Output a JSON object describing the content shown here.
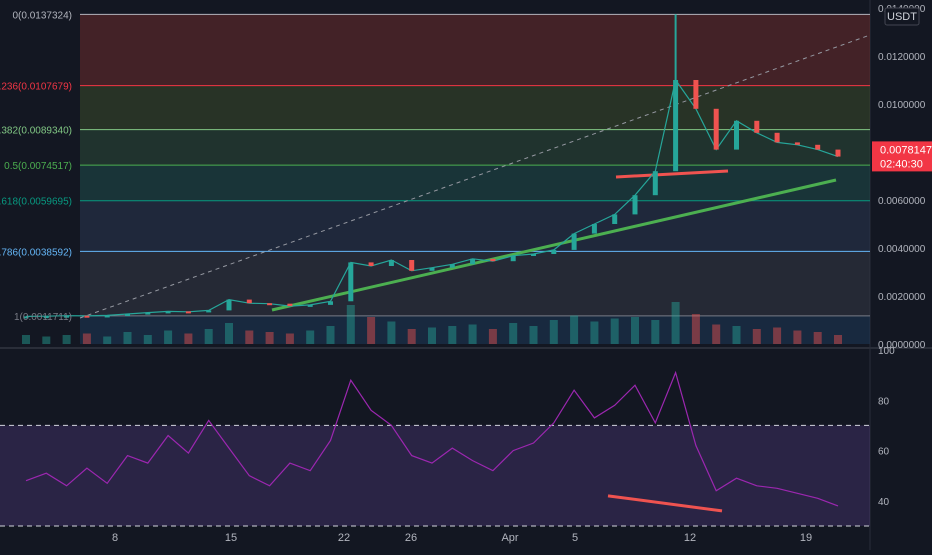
{
  "currency": "USDT",
  "price_axis": {
    "ticks": [
      "0.0140000",
      "0.0120000",
      "0.0100000",
      "0.0080000",
      "0.0060000",
      "0.0040000",
      "0.0020000",
      "0.0000000"
    ],
    "tick_values": [
      0.014,
      0.012,
      0.01,
      0.008,
      0.006,
      0.004,
      0.002,
      0.0
    ]
  },
  "price_tag": {
    "value": "0.0078147",
    "countdown": "02:40:30",
    "color": "#f23645"
  },
  "rsi_axis": {
    "ticks": [
      "100",
      "80",
      "60",
      "40"
    ],
    "tick_values": [
      100,
      80,
      60,
      40
    ]
  },
  "x_axis": {
    "labels": [
      "8",
      "15",
      "22",
      "26",
      "Apr",
      "5",
      "12",
      "19"
    ]
  },
  "fib_levels": [
    {
      "label": "0(0.0137324)",
      "value": 0.0137324,
      "color": "#b2b5be"
    },
    {
      "label": "0.236(0.0107679)",
      "value": 0.0107679,
      "color": "#f23645"
    },
    {
      "label": "0.382(0.0089340)",
      "value": 0.008934,
      "color": "#81c784"
    },
    {
      "label": "0.5(0.0074517)",
      "value": 0.0074517,
      "color": "#4caf50"
    },
    {
      "label": "0.618(0.0059695)",
      "value": 0.0059695,
      "color": "#089981"
    },
    {
      "label": "0.786(0.0038592)",
      "value": 0.0038592,
      "color": "#64b5f6"
    },
    {
      "label": "1(0.0011711)",
      "value": 0.0011711,
      "color": "#787b86"
    }
  ],
  "chart_data": {
    "type": "candlestick",
    "price_series": {
      "x": [
        "Mar 4",
        "Mar 5",
        "Mar 6",
        "Mar 7",
        "Mar 8",
        "Mar 9",
        "Mar 10",
        "Mar 11",
        "Mar 12",
        "Mar 13",
        "Mar 14",
        "Mar 15",
        "Mar 16",
        "Mar 17",
        "Mar 18",
        "Mar 19",
        "Mar 20",
        "Mar 21",
        "Mar 22",
        "Mar 23",
        "Mar 24",
        "Mar 25",
        "Mar 26",
        "Mar 27",
        "Mar 28",
        "Mar 29",
        "Mar 30",
        "Mar 31",
        "Apr 1",
        "Apr 2",
        "Apr 3",
        "Apr 4",
        "Apr 5",
        "Apr 6",
        "Apr 7",
        "Apr 8",
        "Apr 9",
        "Apr 10",
        "Apr 11",
        "Apr 12",
        "Apr 13"
      ],
      "close": [
        0.00115,
        0.00116,
        0.00118,
        0.00117,
        0.00119,
        0.00125,
        0.00131,
        0.00136,
        0.00134,
        0.0014,
        0.00185,
        0.0017,
        0.00168,
        0.00158,
        0.00163,
        0.00178,
        0.0034,
        0.00325,
        0.0035,
        0.00305,
        0.00318,
        0.00332,
        0.00355,
        0.00345,
        0.00368,
        0.00375,
        0.00392,
        0.0046,
        0.005,
        0.0054,
        0.0062,
        0.0072,
        0.011,
        0.0098,
        0.0081,
        0.0093,
        0.0088,
        0.0084,
        0.0083,
        0.0081,
        0.00781
      ],
      "high": 0.0137324,
      "last": 0.0078147
    },
    "rsi_series": {
      "name": "RSI",
      "values": [
        48,
        51,
        46,
        53,
        47,
        58,
        55,
        66,
        59,
        72,
        61,
        50,
        46,
        55,
        52,
        64,
        88,
        76,
        70,
        58,
        55,
        61,
        56,
        52,
        60,
        63,
        71,
        84,
        73,
        78,
        86,
        71,
        91,
        62,
        44,
        49,
        46,
        45,
        43,
        41,
        38
      ]
    },
    "volume": [
      6,
      5,
      6,
      7,
      5,
      8,
      6,
      9,
      7,
      10,
      14,
      9,
      8,
      7,
      9,
      12,
      26,
      18,
      15,
      10,
      11,
      12,
      13,
      10,
      14,
      12,
      16,
      19,
      15,
      17,
      18,
      16,
      28,
      20,
      13,
      12,
      10,
      11,
      9,
      8,
      6
    ],
    "volume_unit": "relative",
    "y_range": [
      0,
      0.014
    ],
    "rsi_range": [
      30,
      100
    ],
    "rsi_bands": [
      70,
      30
    ]
  }
}
